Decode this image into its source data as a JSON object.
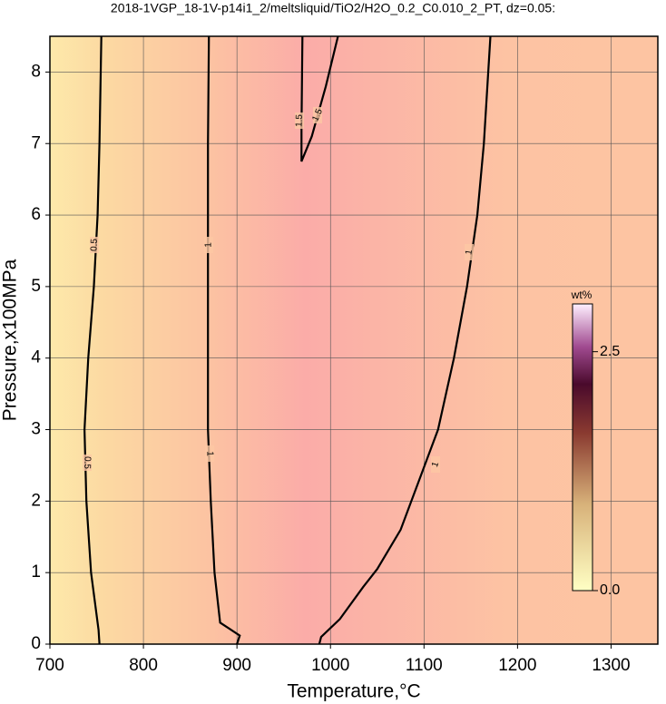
{
  "chart_data": {
    "type": "contour",
    "title": "2018-1VGP_18-1V-p14i1_2/meltsliquid/TiO2/H2O_0.2_C0.010_2_PT, dz=0.05:",
    "x_label": "Temperature,°C",
    "y_label": "Pressure,x100MPa",
    "xlim": [
      700,
      1350
    ],
    "ylim": [
      0,
      8.5
    ],
    "xticks": [
      700,
      800,
      900,
      1000,
      1100,
      1200,
      1300
    ],
    "yticks": [
      0,
      1,
      2,
      3,
      4,
      5,
      6,
      7,
      8
    ],
    "grid": true,
    "contours": [
      {
        "level": 0.5,
        "x": [
          753,
          752,
          744,
          739,
          737,
          741,
          747,
          751,
          753,
          755
        ],
        "y": [
          0,
          0.2,
          1,
          2,
          3,
          4,
          5,
          6,
          7,
          8.5
        ]
      },
      {
        "level": 1,
        "x": [
          900,
          903,
          882,
          876,
          872,
          869,
          869,
          869,
          870
        ],
        "y": [
          0,
          0.12,
          0.3,
          1,
          2,
          3,
          5,
          7,
          8.5
        ]
      },
      {
        "level": 1,
        "x": [
          988,
          990,
          1010,
          1035,
          1050,
          1075,
          1095,
          1115,
          1132,
          1146,
          1157,
          1164,
          1171
        ],
        "y": [
          0,
          0.1,
          0.35,
          0.8,
          1.05,
          1.6,
          2.3,
          3,
          4,
          5,
          6,
          7,
          8.5
        ]
      },
      {
        "level": 1.5,
        "x": [
          970,
          969,
          969,
          980,
          995,
          1008
        ],
        "y": [
          8.5,
          7.2,
          6.75,
          7.1,
          7.8,
          8.5
        ]
      }
    ],
    "colorbar": {
      "label": "wt%",
      "lim": [
        0,
        3
      ],
      "ticks": [
        {
          "value": 0,
          "label": "0.0"
        },
        2.5
      ]
    }
  }
}
